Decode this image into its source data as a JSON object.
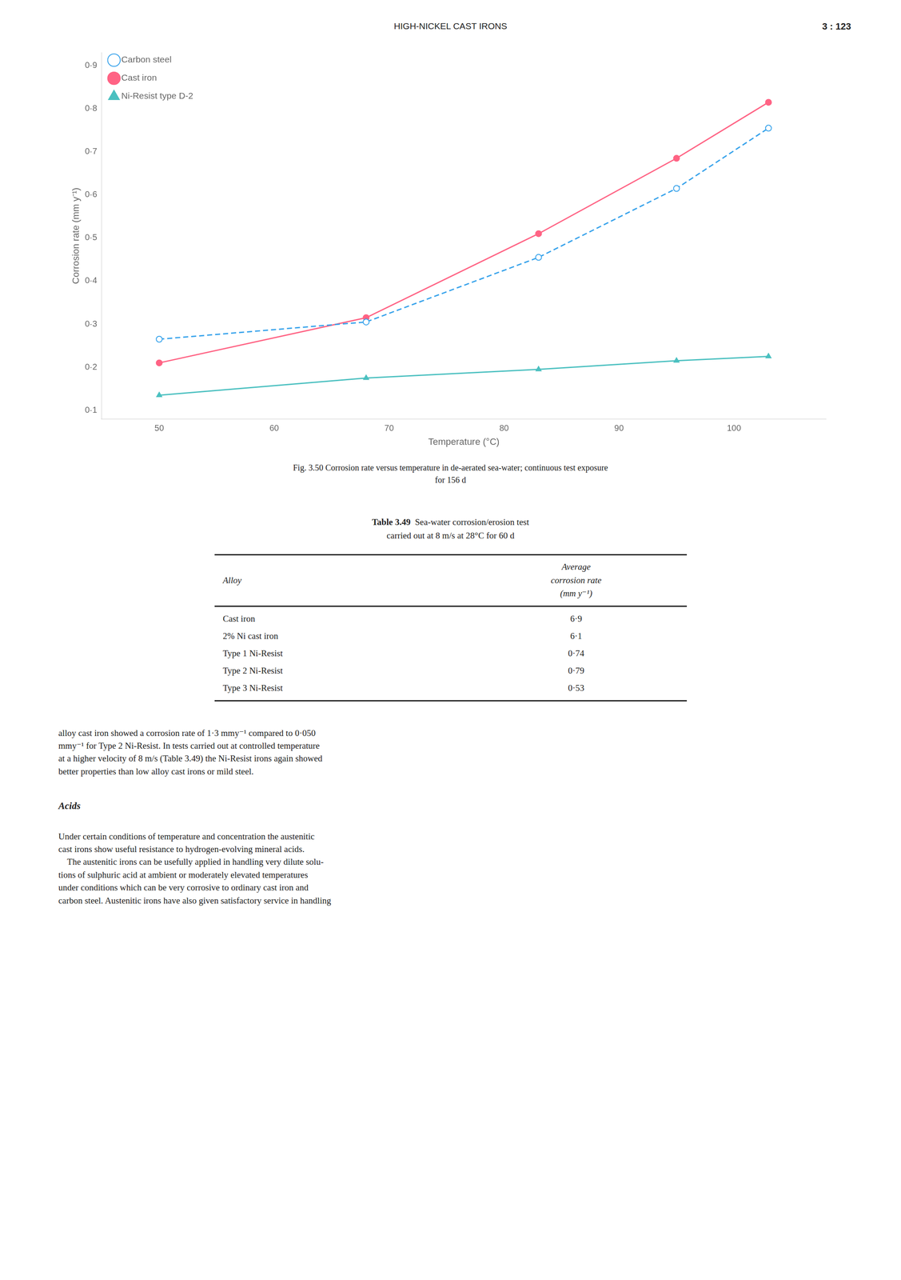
{
  "page_header": [
    "HIGH-NICKEL CAST IRONS",
    "3 : 123"
  ],
  "chart_data": {
    "type": "line",
    "x_label": "Temperature (°C)",
    "y_label": "Corrosion rate (mm y⁻¹)",
    "xlim": [
      45,
      108
    ],
    "ylim": [
      0.08,
      0.93
    ],
    "xticks": [
      50,
      60,
      70,
      80,
      90,
      100
    ],
    "yticks": [
      {
        "value": 0.1,
        "label": "0·1"
      },
      {
        "value": 0.2,
        "label": "0·2"
      },
      {
        "value": 0.3,
        "label": "0·3"
      },
      {
        "value": 0.4,
        "label": "0·4"
      },
      {
        "value": 0.5,
        "label": "0·5"
      },
      {
        "value": 0.6,
        "label": "0·6"
      },
      {
        "value": 0.7,
        "label": "0·7"
      },
      {
        "value": 0.8,
        "label": "0·8"
      },
      {
        "value": 0.9,
        "label": "0·9"
      }
    ],
    "grid": false,
    "legend": "upper left",
    "x": [
      50,
      68,
      83,
      95,
      103
    ],
    "series": [
      {
        "name": "Carbon steel",
        "values": [
          0.265,
          0.305,
          0.455,
          0.615,
          0.755
        ],
        "marker": "open_circle",
        "line_style": "dashed"
      },
      {
        "name": "Cast iron",
        "values": [
          0.21,
          0.315,
          0.51,
          0.685,
          0.815
        ],
        "marker": "circle",
        "line_style": "solid"
      },
      {
        "name": "Ni-Resist type D-2",
        "values": [
          0.135,
          0.175,
          0.195,
          0.215,
          0.225
        ],
        "marker": "triangle",
        "line_style": "solid"
      }
    ]
  },
  "caption": [
    "Fig. 3.50  Corrosion rate versus temperature in de-aerated sea-water; continuous test exposure",
    "for 156 d"
  ],
  "table": {
    "title": "Table 3.49",
    "subtitle": [
      "Sea-water corrosion/erosion test",
      "carried out at 8 m/s at 28°C for 60 d"
    ],
    "columns": [
      [
        "Alloy"
      ],
      [
        "Average",
        "corrosion rate",
        "(mm y⁻¹)"
      ]
    ],
    "rows": [
      [
        "Cast iron",
        "6·9"
      ],
      [
        "2% Ni cast iron",
        "6·1"
      ],
      [
        "Type 1 Ni-Resist",
        "0·74"
      ],
      [
        "Type 2 Ni-Resist",
        "0·79"
      ],
      [
        "Type 3 Ni-Resist",
        "0·53"
      ]
    ]
  },
  "paragraphs": [
    {
      "lines": [
        "alloy cast iron showed a corrosion rate of 1·3 mmy⁻¹ compared to 0·050",
        "mmy⁻¹ for Type 2 Ni-Resist. In tests carried out at controlled temperature",
        "at a higher velocity of 8 m/s (Table 3.49) the Ni-Resist irons again showed",
        "better properties than low alloy cast irons or mild steel."
      ]
    },
    {
      "heading": "Acids"
    },
    {
      "lines": [
        "Under certain conditions of temperature and concentration the austenitic",
        "cast irons show useful resistance to hydrogen-evolving mineral acids.",
        "    The austenitic irons can be usefully applied in handling very dilute solu-",
        "tions of sulphuric acid at ambient or moderately elevated temperatures",
        "under conditions which can be very corrosive to ordinary cast iron and",
        "carbon steel. Austenitic irons have also given satisfactory service in handling"
      ]
    }
  ]
}
